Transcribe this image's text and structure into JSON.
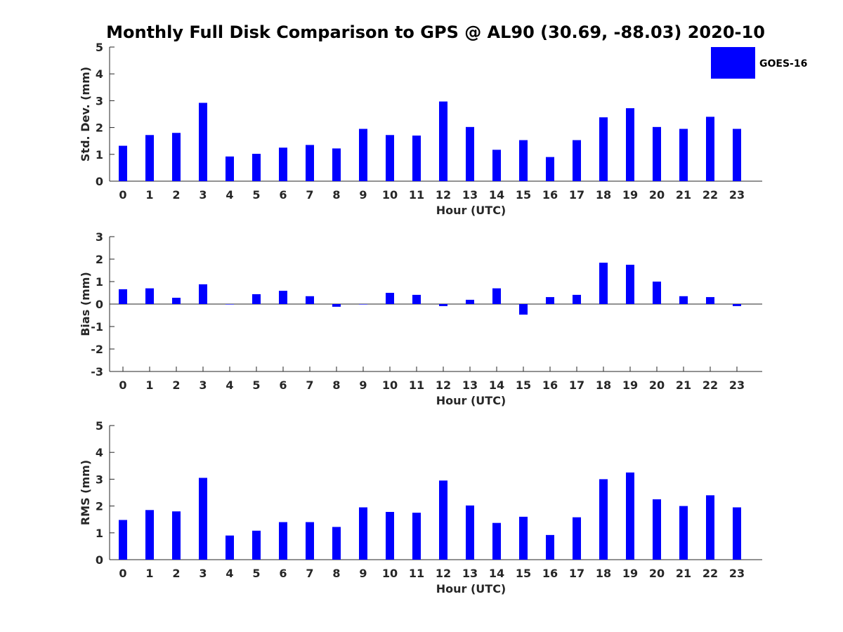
{
  "chart_data": {
    "type": "bar",
    "title": "Monthly Full Disk Comparison to GPS @ AL90 (30.69, -88.03) 2020-10",
    "legend": {
      "placement": "top-right",
      "entries": [
        "GOES-16"
      ]
    },
    "series_color": "#0000ff",
    "categories": [
      "0",
      "1",
      "2",
      "3",
      "4",
      "5",
      "6",
      "7",
      "8",
      "9",
      "10",
      "11",
      "12",
      "13",
      "14",
      "15",
      "16",
      "17",
      "18",
      "19",
      "20",
      "21",
      "22",
      "23"
    ],
    "panels": [
      {
        "xlabel": "Hour (UTC)",
        "ylabel": "Std. Dev. (mm)",
        "ylim": [
          0,
          5
        ],
        "yticks": [
          0,
          1,
          2,
          3,
          4,
          5
        ],
        "series": [
          {
            "name": "GOES-16",
            "values": [
              1.32,
              1.72,
              1.8,
              2.92,
              0.92,
              1.02,
              1.25,
              1.35,
              1.22,
              1.95,
              1.72,
              1.7,
              2.97,
              2.02,
              1.17,
              1.53,
              0.9,
              1.53,
              2.38,
              2.72,
              2.02,
              1.95,
              2.4,
              1.95
            ]
          }
        ]
      },
      {
        "xlabel": "Hour (UTC)",
        "ylabel": "Bias (mm)",
        "ylim": [
          -3,
          3
        ],
        "yticks": [
          -3,
          -2,
          -1,
          0,
          1,
          2,
          3
        ],
        "series": [
          {
            "name": "GOES-16",
            "values": [
              0.66,
              0.7,
              0.28,
              0.88,
              0.0,
              0.44,
              0.59,
              0.35,
              -0.12,
              0.0,
              0.5,
              0.41,
              -0.09,
              0.19,
              0.7,
              -0.47,
              0.31,
              0.41,
              1.84,
              1.75,
              1.0,
              0.35,
              0.31,
              -0.09
            ]
          }
        ]
      },
      {
        "xlabel": "Hour (UTC)",
        "ylabel": "RMS (mm)",
        "ylim": [
          0,
          5
        ],
        "yticks": [
          0,
          1,
          2,
          3,
          4,
          5
        ],
        "series": [
          {
            "name": "GOES-16",
            "values": [
              1.48,
              1.85,
              1.8,
              3.05,
              0.9,
              1.08,
              1.4,
              1.4,
              1.22,
              1.95,
              1.78,
              1.75,
              2.95,
              2.02,
              1.37,
              1.6,
              0.92,
              1.58,
              3.0,
              3.25,
              2.25,
              2.0,
              2.4,
              1.95
            ]
          }
        ]
      }
    ]
  }
}
